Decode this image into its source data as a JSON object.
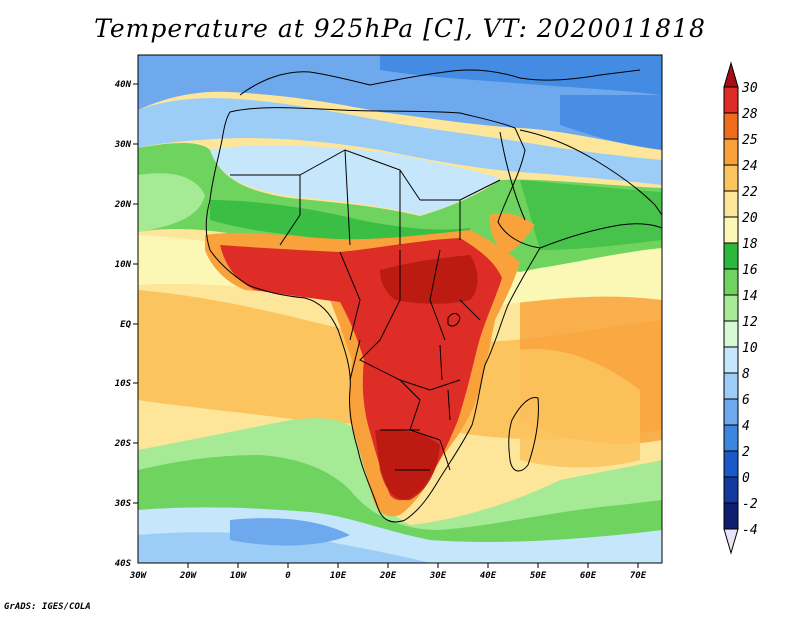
{
  "title": "Temperature at 925hPa [C], VT: 2020011818",
  "credit": "GrADS: IGES/COLA",
  "axes": {
    "lat_labels": [
      "40N",
      "30N",
      "20N",
      "10N",
      "EQ",
      "10S",
      "20S",
      "30S",
      "40S"
    ],
    "lon_labels": [
      "30W",
      "20W",
      "10W",
      "0",
      "10E",
      "20E",
      "30E",
      "40E",
      "50E",
      "60E",
      "70E"
    ]
  },
  "colorbar": {
    "labels": [
      "30",
      "28",
      "25",
      "24",
      "22",
      "20",
      "18",
      "16",
      "14",
      "12",
      "10",
      "8",
      "6",
      "4",
      "2",
      "0",
      "-2",
      "-4"
    ],
    "colors": [
      "#a50f15",
      "#de2d26",
      "#ef6c1a",
      "#f9a13a",
      "#fcc45f",
      "#fde59a",
      "#fbf7b4",
      "#2db83d",
      "#6fd45f",
      "#a6ea96",
      "#d6f8d6",
      "#c5e6fb",
      "#9ccdf7",
      "#6ea9ee",
      "#3d86e0",
      "#1a5ac8",
      "#123a9e",
      "#0d1f6e",
      "#e7e4f8"
    ]
  },
  "map_colors": {
    "north_cold": "#6ea9ee",
    "north_med": "#9ccdf7",
    "sahara_pale": "#c5e6fb",
    "green_mid": "#6fd45f",
    "green_dark": "#2db83d",
    "green_light": "#a6ea96",
    "ocean_yellow": "#fbf7b4",
    "ocean_tan": "#fde59a",
    "ocean_orange": "#fcc45f",
    "land_orange": "#f9a13a",
    "land_red": "#de2d26",
    "land_darkred": "#b7190f",
    "south_blue": "#9ccdf7",
    "south_pale": "#c5e6fb",
    "border": "#000000"
  }
}
